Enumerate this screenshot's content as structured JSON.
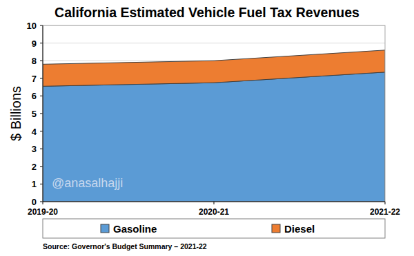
{
  "chart_data": {
    "type": "area",
    "title": "California Estimated Vehicle Fuel Tax Revenues",
    "y_label": "$ Billions",
    "categories": [
      "2019-20",
      "2020-21",
      "2021-22"
    ],
    "series": [
      {
        "name": "Gasoline",
        "color": "#5b9bd5",
        "values": [
          6.55,
          6.75,
          7.35
        ]
      },
      {
        "name": "Diesel",
        "color": "#ed7d31",
        "values": [
          1.25,
          1.25,
          1.25
        ]
      }
    ],
    "stacked": true,
    "ylim": [
      0,
      10
    ],
    "yticks": [
      0,
      1,
      2,
      3,
      4,
      5,
      6,
      7,
      8,
      9,
      10
    ],
    "grid": true,
    "legend": "bottom",
    "annotations": [
      "@anasalhajji"
    ],
    "source": "Source: Governor's Budget Summary – 2021-22"
  }
}
